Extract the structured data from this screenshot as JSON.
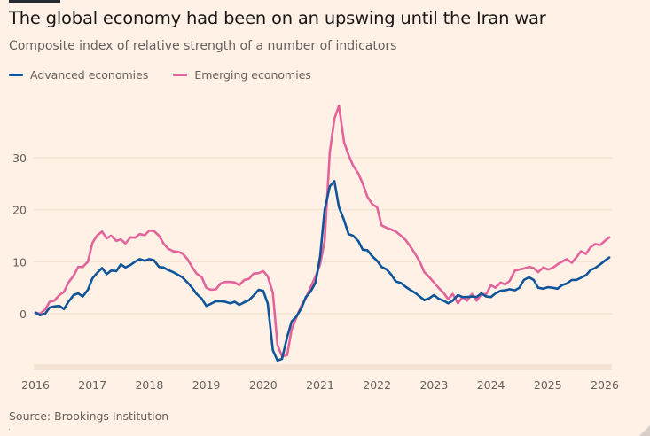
{
  "chart_data": {
    "type": "line",
    "title": "The global economy had been on an upswing until the Iran war",
    "subtitle": "Composite index of relative strength of a number of indicators",
    "xlabel": "",
    "ylabel": "",
    "source": "Source: Brookings Institution",
    "legend_position": "top-left",
    "grid": true,
    "xlim": [
      2016.0,
      2026.1
    ],
    "ylim": [
      -10,
      40
    ],
    "yticks": [
      0,
      10,
      20,
      30
    ],
    "xticks": [
      2016,
      2017,
      2018,
      2019,
      2020,
      2021,
      2022,
      2023,
      2024,
      2025,
      2026
    ],
    "x": [
      2016.0,
      2016.08,
      2016.17,
      2016.25,
      2016.33,
      2016.42,
      2016.5,
      2016.58,
      2016.67,
      2016.75,
      2016.83,
      2016.92,
      2017.0,
      2017.08,
      2017.17,
      2017.25,
      2017.33,
      2017.42,
      2017.5,
      2017.58,
      2017.67,
      2017.75,
      2017.83,
      2017.92,
      2018.0,
      2018.08,
      2018.17,
      2018.25,
      2018.33,
      2018.42,
      2018.5,
      2018.58,
      2018.67,
      2018.75,
      2018.83,
      2018.92,
      2019.0,
      2019.08,
      2019.17,
      2019.25,
      2019.33,
      2019.42,
      2019.5,
      2019.58,
      2019.67,
      2019.75,
      2019.83,
      2019.92,
      2020.0,
      2020.08,
      2020.17,
      2020.25,
      2020.33,
      2020.42,
      2020.5,
      2020.58,
      2020.67,
      2020.75,
      2020.83,
      2020.92,
      2021.0,
      2021.08,
      2021.17,
      2021.25,
      2021.33,
      2021.42,
      2021.5,
      2021.58,
      2021.67,
      2021.75,
      2021.83,
      2021.92,
      2022.0,
      2022.08,
      2022.17,
      2022.25,
      2022.33,
      2022.42,
      2022.5,
      2022.58,
      2022.67,
      2022.75,
      2022.83,
      2022.92,
      2023.0,
      2023.08,
      2023.17,
      2023.25,
      2023.33,
      2023.42,
      2023.5,
      2023.58,
      2023.67,
      2023.75,
      2023.83,
      2023.92,
      2024.0,
      2024.08,
      2024.17,
      2024.25,
      2024.33,
      2024.42,
      2024.5,
      2024.58,
      2024.67,
      2024.75,
      2024.83,
      2024.92,
      2025.0,
      2025.08,
      2025.17,
      2025.25,
      2025.33,
      2025.42,
      2025.5,
      2025.58,
      2025.67,
      2025.75,
      2025.83,
      2025.92,
      2026.0,
      2026.08
    ],
    "series": [
      {
        "name": "Advanced economies",
        "color": "#0f5499",
        "values": [
          0.2,
          -0.3,
          0.0,
          1.2,
          1.4,
          1.5,
          0.9,
          2.3,
          3.6,
          3.9,
          3.3,
          4.6,
          6.8,
          7.8,
          8.8,
          7.6,
          8.3,
          8.2,
          9.5,
          8.9,
          9.4,
          10.0,
          10.5,
          10.2,
          10.5,
          10.3,
          9.0,
          8.9,
          8.4,
          8.0,
          7.5,
          7.0,
          6.0,
          5.0,
          3.8,
          2.9,
          1.5,
          1.9,
          2.4,
          2.4,
          2.3,
          2.0,
          2.3,
          1.7,
          2.2,
          2.6,
          3.5,
          4.6,
          4.4,
          2.0,
          -7.0,
          -9.0,
          -8.7,
          -4.5,
          -1.5,
          -0.6,
          1.0,
          3.2,
          4.2,
          6.0,
          11.0,
          20.0,
          24.5,
          25.5,
          20.5,
          18.0,
          15.3,
          15.0,
          14.0,
          12.3,
          12.2,
          11.0,
          10.2,
          9.0,
          8.5,
          7.5,
          6.2,
          5.9,
          5.2,
          4.6,
          4.0,
          3.3,
          2.6,
          3.0,
          3.6,
          2.9,
          2.5,
          2.0,
          2.5,
          3.6,
          3.2,
          3.2,
          3.3,
          3.2,
          3.9,
          3.3,
          3.2,
          3.9,
          4.4,
          4.5,
          4.7,
          4.5,
          5.0,
          6.5,
          7.0,
          6.5,
          5.0,
          4.8,
          5.1,
          5.0,
          4.8,
          5.5,
          5.8,
          6.5,
          6.5,
          6.9,
          7.4,
          8.4,
          8.8,
          9.5,
          10.2,
          10.8
        ]
      },
      {
        "name": "Emerging economies",
        "color": "#e3639b",
        "values": [
          0.2,
          0.0,
          0.8,
          2.3,
          2.5,
          3.6,
          4.2,
          6.0,
          7.3,
          9.0,
          9.0,
          10.0,
          13.6,
          15.0,
          15.8,
          14.5,
          15.0,
          14.0,
          14.3,
          13.5,
          14.7,
          14.6,
          15.3,
          15.1,
          16.0,
          15.9,
          15.0,
          13.5,
          12.5,
          12.0,
          11.9,
          11.6,
          10.5,
          9.0,
          7.7,
          7.0,
          5.0,
          4.6,
          4.7,
          5.8,
          6.1,
          6.1,
          6.0,
          5.5,
          6.5,
          6.7,
          7.7,
          7.8,
          8.2,
          7.2,
          4.0,
          -6.0,
          -8.2,
          -8.0,
          -3.0,
          -0.8,
          1.5,
          3.0,
          5.0,
          7.2,
          9.5,
          14.0,
          31.0,
          37.5,
          40.0,
          33.0,
          30.5,
          28.5,
          27.0,
          25.0,
          22.5,
          21.0,
          20.5,
          17.0,
          16.5,
          16.2,
          15.8,
          15.0,
          14.2,
          13.0,
          11.5,
          10.0,
          8.0,
          7.0,
          6.0,
          5.0,
          4.0,
          2.8,
          3.8,
          2.0,
          3.2,
          2.5,
          3.8,
          2.5,
          3.7,
          3.8,
          5.5,
          5.0,
          6.0,
          5.6,
          6.3,
          8.3,
          8.5,
          8.7,
          9.0,
          8.8,
          8.0,
          8.9,
          8.5,
          8.8,
          9.5,
          10.0,
          10.5,
          9.8,
          10.8,
          12.0,
          11.5,
          12.8,
          13.4,
          13.2,
          14.0,
          14.7
        ]
      }
    ]
  }
}
